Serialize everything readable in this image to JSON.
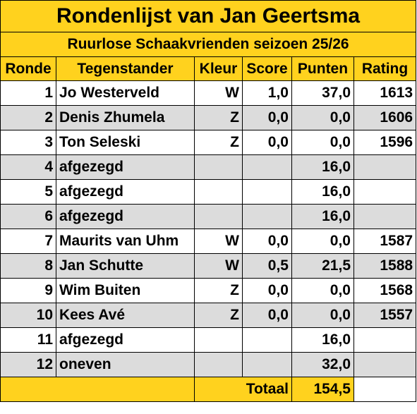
{
  "title": "Rondenlijst van Jan Geertsma",
  "subtitle": "Ruurlose Schaakvrienden seizoen 25/26",
  "headers": {
    "ronde": "Ronde",
    "tegenstander": "Tegenstander",
    "kleur": "Kleur",
    "score": "Score",
    "punten": "Punten",
    "rating": "Rating"
  },
  "rows": [
    {
      "ronde": "1",
      "tegenstander": "Jo Westerveld",
      "kleur": "W",
      "score": "1,0",
      "punten": "37,0",
      "rating": "1613"
    },
    {
      "ronde": "2",
      "tegenstander": "Denis Zhumela",
      "kleur": "Z",
      "score": "0,0",
      "punten": "0,0",
      "rating": "1606"
    },
    {
      "ronde": "3",
      "tegenstander": "Ton Seleski",
      "kleur": "Z",
      "score": "0,0",
      "punten": "0,0",
      "rating": "1596"
    },
    {
      "ronde": "4",
      "tegenstander": "afgezegd",
      "kleur": "",
      "score": "",
      "punten": "16,0",
      "rating": ""
    },
    {
      "ronde": "5",
      "tegenstander": "afgezegd",
      "kleur": "",
      "score": "",
      "punten": "16,0",
      "rating": ""
    },
    {
      "ronde": "6",
      "tegenstander": "afgezegd",
      "kleur": "",
      "score": "",
      "punten": "16,0",
      "rating": ""
    },
    {
      "ronde": "7",
      "tegenstander": "Maurits van Uhm",
      "kleur": "W",
      "score": "0,0",
      "punten": "0,0",
      "rating": "1587"
    },
    {
      "ronde": "8",
      "tegenstander": "Jan Schutte",
      "kleur": "W",
      "score": "0,5",
      "punten": "21,5",
      "rating": "1588"
    },
    {
      "ronde": "9",
      "tegenstander": "Wim Buiten",
      "kleur": "Z",
      "score": "0,0",
      "punten": "0,0",
      "rating": "1568"
    },
    {
      "ronde": "10",
      "tegenstander": "Kees Avé",
      "kleur": "Z",
      "score": "0,0",
      "punten": "0,0",
      "rating": "1557"
    },
    {
      "ronde": "11",
      "tegenstander": "afgezegd",
      "kleur": "",
      "score": "",
      "punten": "16,0",
      "rating": ""
    },
    {
      "ronde": "12",
      "tegenstander": "oneven",
      "kleur": "",
      "score": "",
      "punten": "32,0",
      "rating": ""
    }
  ],
  "total": {
    "label": "Totaal",
    "value": "154,5"
  },
  "colors": {
    "header_bg": "#ffd21e",
    "alt_row_bg": "#dcdcdc",
    "row_bg": "#ffffff"
  }
}
